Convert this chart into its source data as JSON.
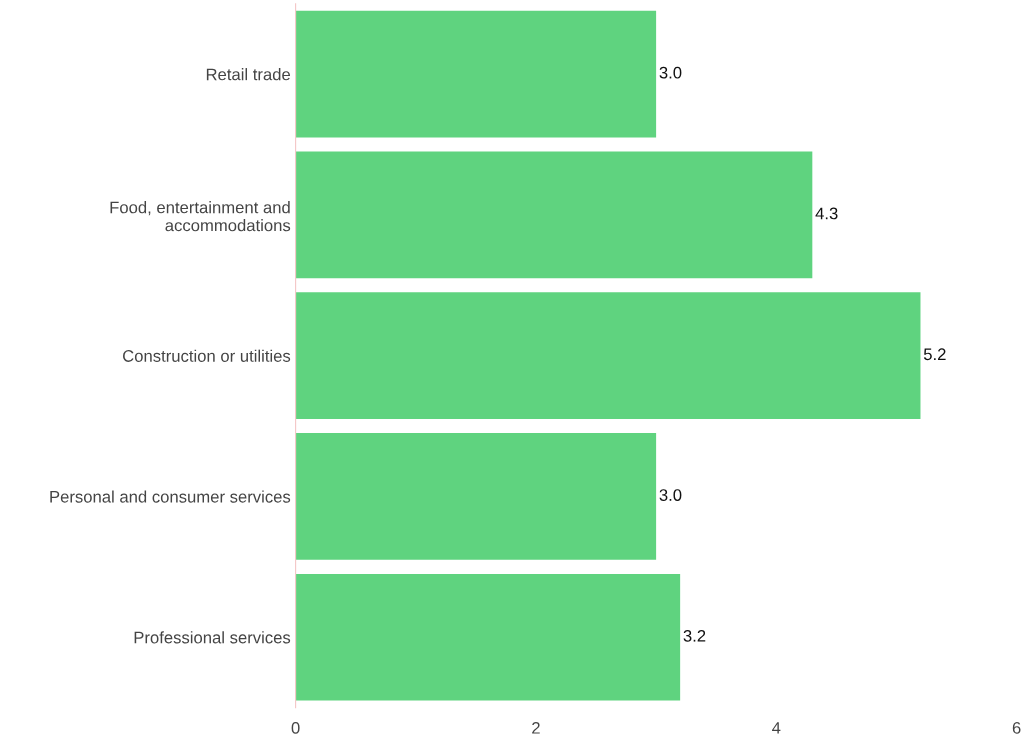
{
  "chart_data": {
    "type": "bar",
    "orientation": "horizontal",
    "categories": [
      "Retail trade",
      "Food, entertainment and\naccommodations",
      "Construction or utilities",
      "Personal and consumer services",
      "Professional services"
    ],
    "values": [
      3.0,
      4.3,
      5.2,
      3.0,
      3.2
    ],
    "color": "#5fd37f",
    "xlim": [
      0,
      6
    ],
    "xticks": [
      0,
      2,
      4,
      6
    ],
    "value_labels": [
      "3.0",
      "4.3",
      "5.2",
      "3.0",
      "3.2"
    ],
    "grid": false,
    "legend": false
  }
}
